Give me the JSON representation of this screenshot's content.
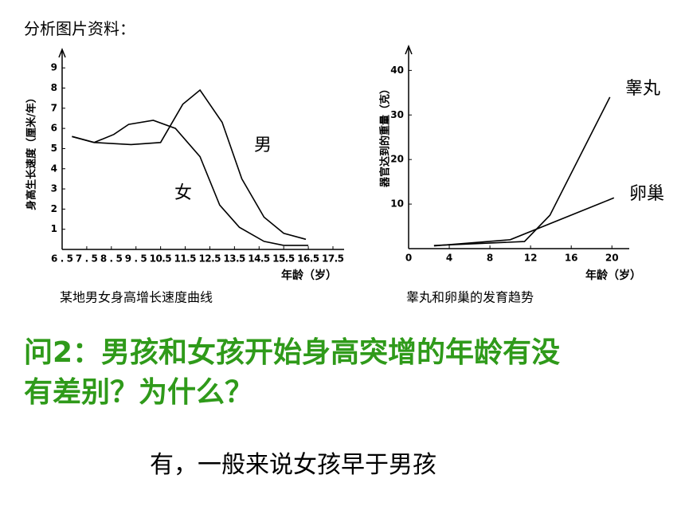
{
  "header": "分析图片资料：",
  "chart_data": [
    {
      "type": "line",
      "caption": "某地男女身高增长速度曲线",
      "x_label": "年龄（岁）",
      "y_label": "身高生长速度（厘米/年）",
      "xlim": [
        6.5,
        17.5
      ],
      "xticks": [
        6.5,
        7.5,
        8.5,
        9.5,
        10.5,
        11.5,
        12.5,
        13.5,
        14.5,
        15.5,
        16.5,
        17.5
      ],
      "ylim": [
        0,
        9.6
      ],
      "yticks": [
        1,
        2,
        3,
        4,
        5,
        6,
        7,
        8,
        9
      ],
      "series": [
        {
          "name": "男",
          "color": "#000000",
          "x": [
            6.9,
            7.8,
            9.3,
            10.5,
            11.4,
            12.1,
            13.0,
            13.8,
            14.7,
            15.5,
            16.4
          ],
          "values": [
            5.6,
            5.3,
            5.2,
            5.3,
            7.2,
            7.9,
            6.3,
            3.5,
            1.6,
            0.8,
            0.5
          ]
        },
        {
          "name": "女",
          "color": "#000000",
          "x": [
            6.9,
            7.8,
            8.6,
            9.2,
            10.2,
            11.1,
            12.1,
            12.9,
            13.7,
            14.7,
            15.5,
            16.5
          ],
          "values": [
            5.6,
            5.3,
            5.7,
            6.2,
            6.4,
            6.0,
            4.6,
            2.2,
            1.1,
            0.4,
            0.2,
            0.2
          ]
        }
      ]
    },
    {
      "type": "line",
      "caption": "睾丸和卵巢的发育趋势",
      "x_label": "年龄（岁）",
      "y_label": "器官达到的重量（克）",
      "xlim": [
        0,
        21
      ],
      "xticks": [
        0,
        4,
        8,
        12,
        16,
        20
      ],
      "ylim": [
        0,
        44
      ],
      "yticks": [
        10,
        20,
        30,
        40
      ],
      "series": [
        {
          "name": "睾丸",
          "color": "#000000",
          "x": [
            2.5,
            11.4,
            13.9,
            19.8
          ],
          "values": [
            0.7,
            1.6,
            7.5,
            34
          ]
        },
        {
          "name": "卵巢",
          "color": "#000000",
          "x": [
            2.5,
            10.0,
            20.2
          ],
          "values": [
            0.6,
            2.0,
            11.4
          ]
        }
      ]
    }
  ],
  "question": [
    "问2：男孩和女孩开始身高突增的年龄有没",
    "有差别？为什么？"
  ],
  "answer": "有，一般来说女孩早于男孩"
}
